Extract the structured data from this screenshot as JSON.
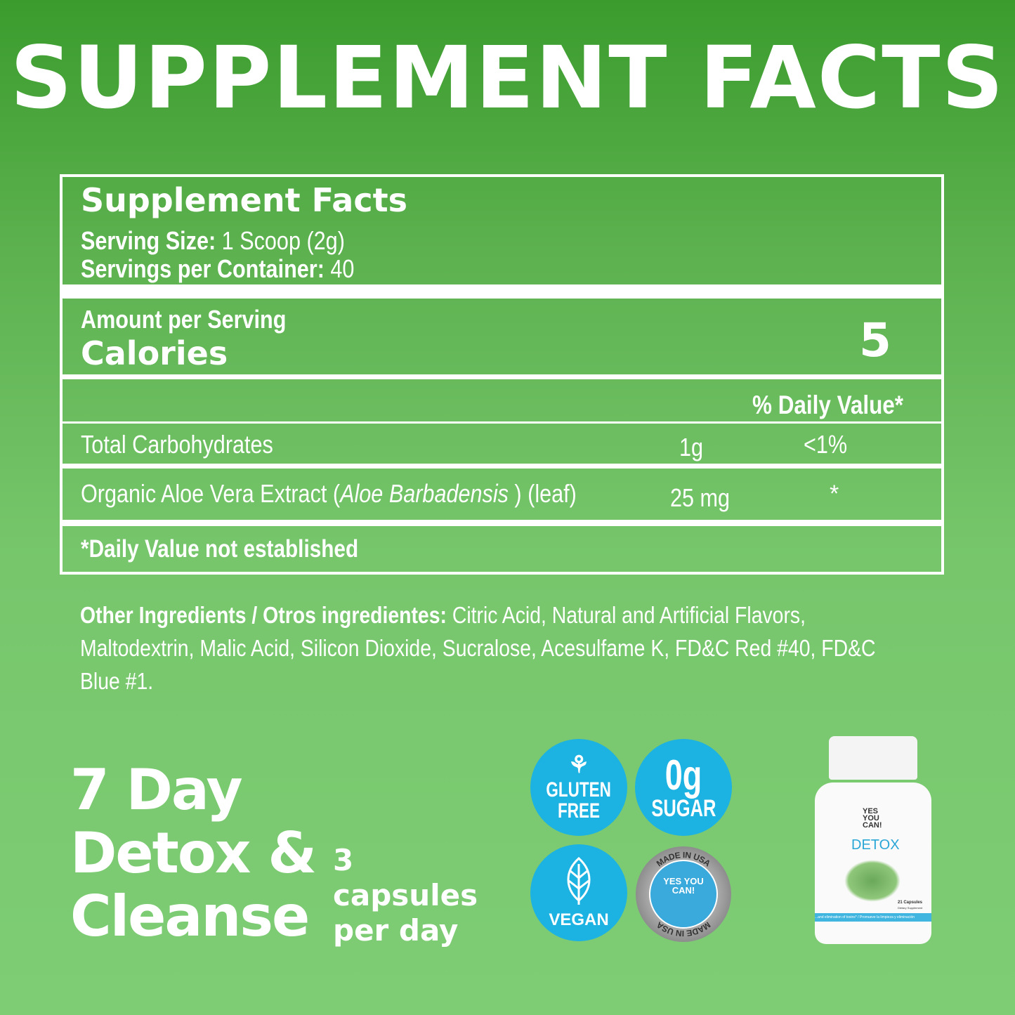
{
  "title": "SUPPLEMENT FACTS",
  "facts": {
    "heading": "Supplement Facts",
    "serving_size_label": "Serving Size:",
    "serving_size": "1 Scoop (2g)",
    "servings_label": "Servings per Container:",
    "servings": "40",
    "amount_label": "Amount per Serving",
    "calories_label": "Calories",
    "calories": "5",
    "dv_header": "% Daily Value*",
    "rows": [
      {
        "name": "Total Carbohydrates",
        "amount": "1g",
        "dv": "<1%"
      },
      {
        "name_pre": "Organic Aloe Vera Extract (",
        "name_italic": "Aloe Barbadensis",
        "name_post": " ) (leaf)",
        "amount": "25 mg",
        "dv": "*"
      }
    ],
    "footnote": "*Daily Value not established"
  },
  "other_ingredients": {
    "label": "Other Ingredients / Otros ingredientes:",
    "text": " Citric Acid, Natural and Artificial Flavors, Maltodextrin, Malic Acid, Silicon Dioxide, Sucralose, Acesulfame K, FD&C Red #40, FD&C Blue #1."
  },
  "promo": {
    "line1": "7 Day",
    "line2": "Detox &",
    "line3": "Cleanse",
    "dose_num": "3",
    "dose_1": "capsules",
    "dose_2": "per day"
  },
  "badges": {
    "gluten_1": "GLUTEN",
    "gluten_2": "FREE",
    "sugar_1": "0g",
    "sugar_2": "SUGAR",
    "vegan": "VEGAN",
    "usa_top": "MADE IN USA",
    "usa_bottom": "MADE IN USA",
    "brand": "YES YOU CAN!"
  },
  "bottle": {
    "brand": "YES YOU CAN!",
    "product": "DETOX",
    "count": "21 Capsules",
    "sub": "Dietary Supplement",
    "band": "...and elimination of toxins* / Promueve la limpieza y eliminación"
  },
  "colors": {
    "badge": "#1cb2e2",
    "bg_top": "#3b9c2d",
    "bg_bottom": "#7ecd75"
  }
}
